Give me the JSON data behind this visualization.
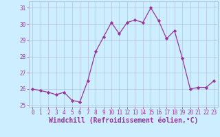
{
  "x": [
    0,
    1,
    2,
    3,
    4,
    5,
    6,
    7,
    8,
    9,
    10,
    11,
    12,
    13,
    14,
    15,
    16,
    17,
    18,
    19,
    20,
    21,
    22,
    23
  ],
  "y": [
    26.0,
    25.9,
    25.8,
    25.65,
    25.8,
    25.3,
    25.2,
    26.5,
    28.3,
    29.2,
    30.1,
    29.4,
    30.1,
    30.25,
    30.1,
    31.0,
    30.2,
    29.1,
    29.6,
    27.9,
    26.0,
    26.1,
    26.1,
    26.5
  ],
  "line_color": "#993399",
  "marker": "D",
  "markersize": 2.2,
  "linewidth": 0.9,
  "xlabel": "Windchill (Refroidissement éolien,°C)",
  "xlabel_fontsize": 7,
  "bg_color": "#cceeff",
  "grid_color": "#aaaacc",
  "tick_color": "#993399",
  "label_color": "#993399",
  "ylim": [
    24.9,
    31.4
  ],
  "xlim": [
    -0.5,
    23.5
  ],
  "yticks": [
    25,
    26,
    27,
    28,
    29,
    30,
    31
  ],
  "xticks": [
    0,
    1,
    2,
    3,
    4,
    5,
    6,
    7,
    8,
    9,
    10,
    11,
    12,
    13,
    14,
    15,
    16,
    17,
    18,
    19,
    20,
    21,
    22,
    23
  ]
}
